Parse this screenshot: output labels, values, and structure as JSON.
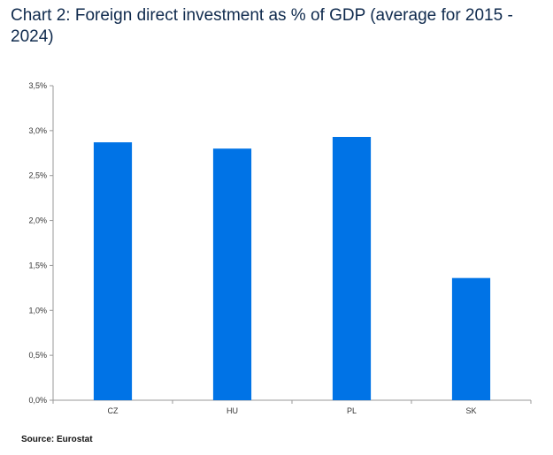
{
  "title": "Chart 2: Foreign direct investment as % of GDP (average for 2015 - 2024)",
  "source": "Source: Eurostat",
  "colors": {
    "bar": "#0073e6",
    "axis": "#999999"
  },
  "chart_data": {
    "type": "bar",
    "title": "Chart 2: Foreign direct investment as % of GDP (average for 2015 - 2024)",
    "categories": [
      "CZ",
      "HU",
      "PL",
      "SK"
    ],
    "values": [
      2.87,
      2.8,
      2.93,
      1.36
    ],
    "unit": "%",
    "ylim": [
      0,
      3.5
    ],
    "yticks": [
      0,
      0.5,
      1.0,
      1.5,
      2.0,
      2.5,
      3.0,
      3.5
    ],
    "ytick_labels": [
      "0,0%",
      "0,5%",
      "1,0%",
      "1,5%",
      "2,0%",
      "2,5%",
      "3,0%",
      "3,5%"
    ],
    "grid": false,
    "legend": "none"
  }
}
